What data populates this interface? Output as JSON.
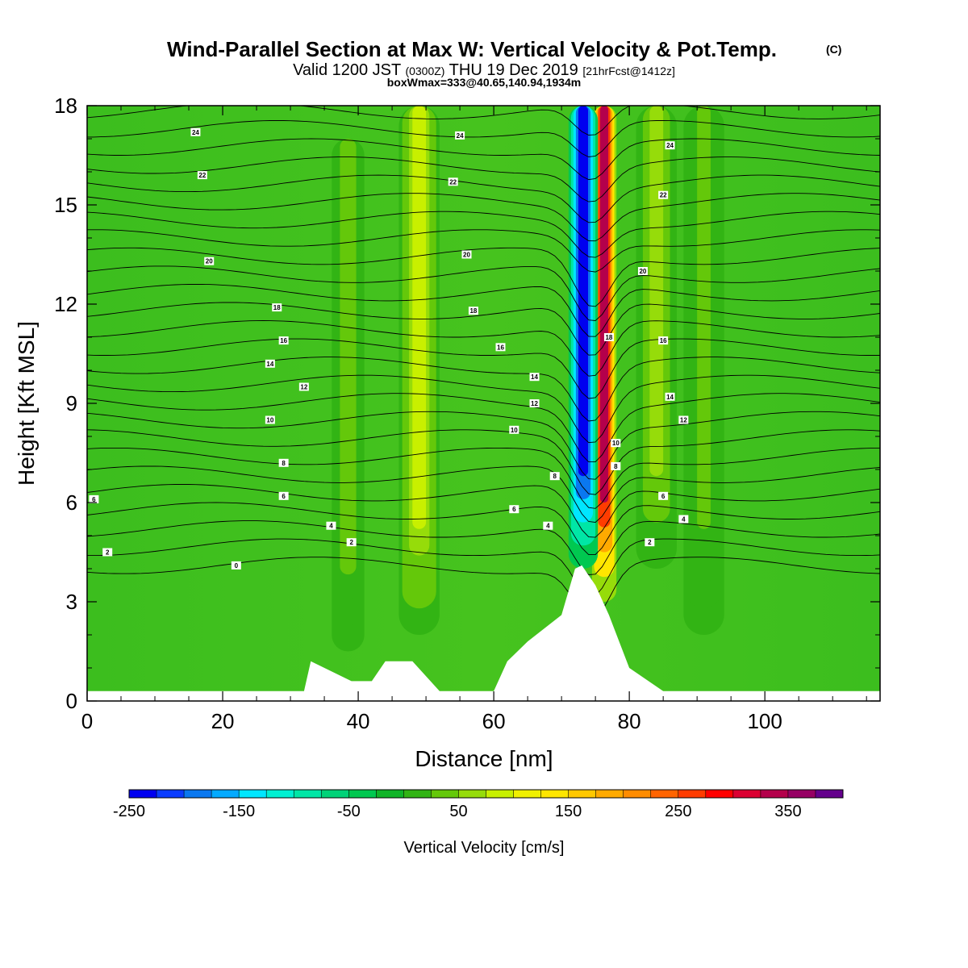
{
  "title": {
    "main": "Wind-Parallel Section at Max W: Vertical Velocity & Pot.Temp.",
    "copyright": "(C)",
    "valid_prefix": "Valid 1200 JST",
    "valid_utc": "(0300Z)",
    "valid_date": "THU 19 Dec 2019",
    "forecast": "[21hrFcst@1412z]",
    "box_info": "boxWmax=333@40.65,140.94,1934m"
  },
  "chart_data": {
    "type": "heatmap",
    "xlabel": "Distance [nm]",
    "ylabel": "Height [Kft MSL]",
    "xlim": [
      0,
      117
    ],
    "ylim": [
      0,
      18
    ],
    "x_ticks": [
      0,
      20,
      40,
      60,
      80,
      100
    ],
    "y_ticks": [
      0,
      3,
      6,
      9,
      12,
      15,
      18
    ],
    "grid": false,
    "colorbar": {
      "label": "Vertical Velocity [cm/s]",
      "range": [
        -250,
        400
      ],
      "step": 25,
      "tick_labels": [
        -250,
        -150,
        -50,
        50,
        150,
        250,
        350
      ],
      "colors": [
        "#0000f0",
        "#0a3cff",
        "#0a78f0",
        "#04aaff",
        "#00e6ff",
        "#00f0d2",
        "#00e6a6",
        "#00d278",
        "#00c850",
        "#10b428",
        "#32b414",
        "#64c80a",
        "#96dc0a",
        "#c8f000",
        "#f0f000",
        "#ffe600",
        "#ffc800",
        "#ffaa00",
        "#ff8c00",
        "#ff6400",
        "#ff3c00",
        "#ff0000",
        "#dc0032",
        "#b4004b",
        "#960064",
        "#64008c"
      ]
    },
    "terrain_kft": {
      "x": [
        0,
        32,
        33,
        39,
        42,
        44,
        48,
        52,
        60,
        62,
        65,
        70,
        72,
        73,
        75,
        77,
        80,
        85,
        87,
        117
      ],
      "y": [
        0.3,
        0.3,
        1.2,
        0.6,
        0.6,
        1.2,
        1.2,
        0.3,
        0.3,
        1.2,
        1.8,
        2.6,
        4.0,
        4.1,
        3.5,
        2.6,
        1.0,
        0.3,
        0.3,
        0.3
      ]
    },
    "vertical_velocity_features": [
      {
        "x_center": 49,
        "base_kft": 2,
        "top_kft": 18,
        "width_nm": 2.5,
        "peak_cm_s": 80
      },
      {
        "x_center": 38.5,
        "base_kft": 1.5,
        "top_kft": 17,
        "width_nm": 2,
        "peak_cm_s": 40
      },
      {
        "x_center": 76.3,
        "base_kft": 3,
        "top_kft": 18,
        "width_nm": 1.5,
        "peak_cm_s": 333
      },
      {
        "x_center": 73.2,
        "base_kft": 4,
        "top_kft": 18,
        "width_nm": 1.8,
        "peak_cm_s": -250
      },
      {
        "x_center": 84,
        "base_kft": 4,
        "top_kft": 18,
        "width_nm": 2.5,
        "peak_cm_s": 60
      },
      {
        "x_center": 91,
        "base_kft": 2,
        "top_kft": 18,
        "width_nm": 2.5,
        "peak_cm_s": 30
      }
    ],
    "potential_temperature_labels": [
      {
        "text": "24",
        "x": 16,
        "y": 17.2
      },
      {
        "text": "22",
        "x": 17,
        "y": 15.9
      },
      {
        "text": "20",
        "x": 18,
        "y": 13.3
      },
      {
        "text": "18",
        "x": 28,
        "y": 11.9
      },
      {
        "text": "16",
        "x": 29,
        "y": 10.9
      },
      {
        "text": "14",
        "x": 27,
        "y": 10.2
      },
      {
        "text": "12",
        "x": 32,
        "y": 9.5
      },
      {
        "text": "10",
        "x": 27,
        "y": 8.5
      },
      {
        "text": "8",
        "x": 29,
        "y": 7.2
      },
      {
        "text": "6",
        "x": 29,
        "y": 6.2
      },
      {
        "text": "6",
        "x": 1,
        "y": 6.1
      },
      {
        "text": "4",
        "x": 36,
        "y": 5.3
      },
      {
        "text": "2",
        "x": 39,
        "y": 4.8
      },
      {
        "text": "2",
        "x": 3,
        "y": 4.5
      },
      {
        "text": "0",
        "x": 22,
        "y": 4.1
      },
      {
        "text": "24",
        "x": 55,
        "y": 17.1
      },
      {
        "text": "22",
        "x": 54,
        "y": 15.7
      },
      {
        "text": "20",
        "x": 56,
        "y": 13.5
      },
      {
        "text": "18",
        "x": 57,
        "y": 11.8
      },
      {
        "text": "16",
        "x": 61,
        "y": 10.7
      },
      {
        "text": "14",
        "x": 66,
        "y": 9.8
      },
      {
        "text": "12",
        "x": 66,
        "y": 9.0
      },
      {
        "text": "10",
        "x": 63,
        "y": 8.2
      },
      {
        "text": "8",
        "x": 69,
        "y": 6.8
      },
      {
        "text": "6",
        "x": 63,
        "y": 5.8
      },
      {
        "text": "4",
        "x": 68,
        "y": 5.3
      },
      {
        "text": "24",
        "x": 86,
        "y": 16.8
      },
      {
        "text": "22",
        "x": 85,
        "y": 15.3
      },
      {
        "text": "20",
        "x": 82,
        "y": 13.0
      },
      {
        "text": "18",
        "x": 77,
        "y": 11.0
      },
      {
        "text": "16",
        "x": 85,
        "y": 10.9
      },
      {
        "text": "14",
        "x": 86,
        "y": 9.2
      },
      {
        "text": "12",
        "x": 88,
        "y": 8.5
      },
      {
        "text": "10",
        "x": 78,
        "y": 7.8
      },
      {
        "text": "8",
        "x": 78,
        "y": 7.1
      },
      {
        "text": "6",
        "x": 85,
        "y": 6.2
      },
      {
        "text": "4",
        "x": 88,
        "y": 5.5
      },
      {
        "text": "2",
        "x": 83,
        "y": 4.8
      }
    ]
  }
}
